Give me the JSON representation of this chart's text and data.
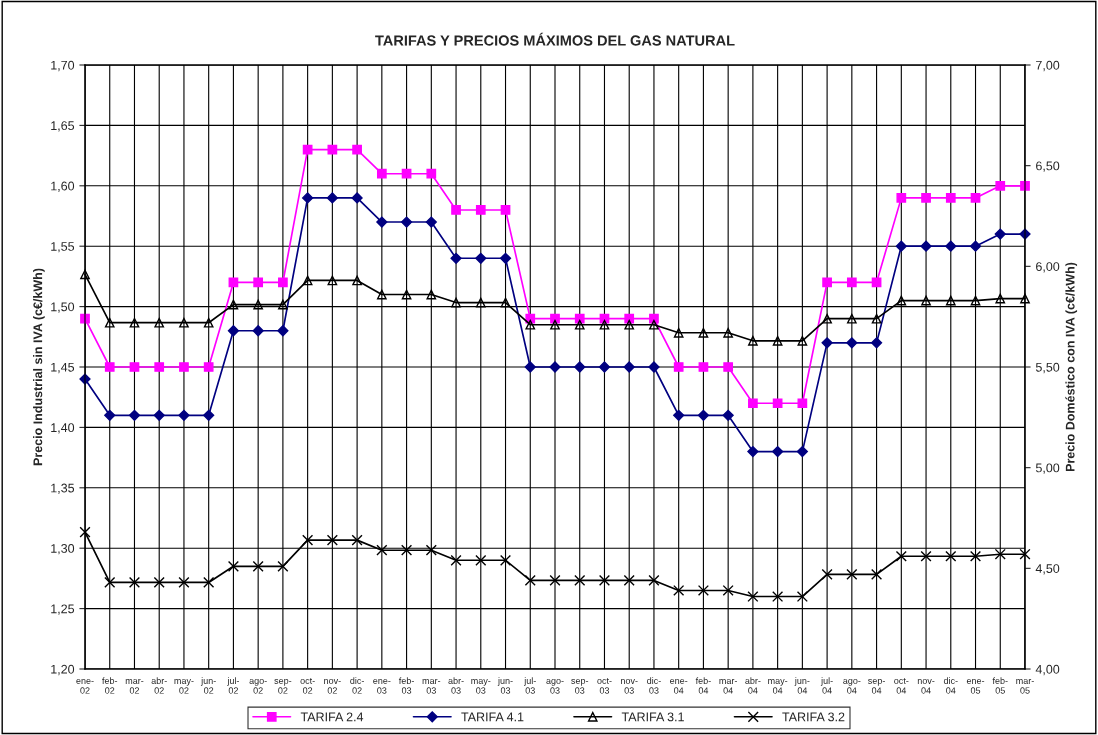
{
  "chart_data": {
    "type": "line",
    "title": "TARIFAS Y PRECIOS MÁXIMOS DEL GAS NATURAL",
    "ylabel": "Precio Industrial sin IVA (c€/kWh)",
    "y2label": "Precio Doméstico con IVA (c€/kWh)",
    "categories": [
      "ene-02",
      "feb-02",
      "mar-02",
      "abr-02",
      "may-02",
      "jun-02",
      "jul-02",
      "ago-02",
      "sep-02",
      "oct-02",
      "nov-02",
      "dic-02",
      "ene-03",
      "feb-03",
      "mar-03",
      "abr-03",
      "may-03",
      "jun-03",
      "jul-03",
      "ago-03",
      "sep-03",
      "oct-03",
      "nov-03",
      "dic-03",
      "ene-04",
      "feb-04",
      "mar-04",
      "abr-04",
      "may-04",
      "jun-04",
      "jul-04",
      "ago-04",
      "sep-04",
      "oct-04",
      "nov-04",
      "dic-04",
      "ene-05",
      "feb-05",
      "mar-05"
    ],
    "series": [
      {
        "name": "TARIFA 2.4",
        "color": "#ff00ff",
        "marker": "square",
        "values": [
          1.49,
          1.45,
          1.45,
          1.45,
          1.45,
          1.45,
          1.52,
          1.52,
          1.52,
          1.63,
          1.63,
          1.63,
          1.61,
          1.61,
          1.61,
          1.58,
          1.58,
          1.58,
          1.49,
          1.49,
          1.49,
          1.49,
          1.49,
          1.49,
          1.45,
          1.45,
          1.45,
          1.42,
          1.42,
          1.42,
          1.52,
          1.52,
          1.52,
          1.59,
          1.59,
          1.59,
          1.59,
          1.6,
          1.6
        ]
      },
      {
        "name": "TARIFA 4.1",
        "color": "#000080",
        "marker": "diamond",
        "values": [
          1.44,
          1.41,
          1.41,
          1.41,
          1.41,
          1.41,
          1.48,
          1.48,
          1.48,
          1.59,
          1.59,
          1.59,
          1.57,
          1.57,
          1.57,
          1.54,
          1.54,
          1.54,
          1.45,
          1.45,
          1.45,
          1.45,
          1.45,
          1.45,
          1.41,
          1.41,
          1.41,
          1.38,
          1.38,
          1.38,
          1.47,
          1.47,
          1.47,
          1.55,
          1.55,
          1.55,
          1.55,
          1.56,
          1.56
        ]
      },
      {
        "name": "TARIFA 3.1",
        "color": "#000000",
        "marker": "triangle",
        "axis": "y2",
        "values": [
          5.96,
          5.72,
          5.72,
          5.72,
          5.72,
          5.72,
          5.81,
          5.81,
          5.81,
          5.93,
          5.93,
          5.93,
          5.86,
          5.86,
          5.86,
          5.82,
          5.82,
          5.82,
          5.71,
          5.71,
          5.71,
          5.71,
          5.71,
          5.71,
          5.67,
          5.67,
          5.67,
          5.63,
          5.63,
          5.63,
          5.74,
          5.74,
          5.74,
          5.83,
          5.83,
          5.83,
          5.83,
          5.84,
          5.84
        ]
      },
      {
        "name": "TARIFA 3.2",
        "color": "#000000",
        "marker": "cross",
        "axis": "y2",
        "values": [
          4.68,
          4.43,
          4.43,
          4.43,
          4.43,
          4.43,
          4.51,
          4.51,
          4.51,
          4.64,
          4.64,
          4.64,
          4.59,
          4.59,
          4.59,
          4.54,
          4.54,
          4.54,
          4.44,
          4.44,
          4.44,
          4.44,
          4.44,
          4.44,
          4.39,
          4.39,
          4.39,
          4.36,
          4.36,
          4.36,
          4.47,
          4.47,
          4.47,
          4.56,
          4.56,
          4.56,
          4.56,
          4.57,
          4.57
        ]
      }
    ],
    "ylim": [
      1.2,
      1.7
    ],
    "yticks": [
      {
        "value": 1.2,
        "label": "1,20"
      },
      {
        "value": 1.25,
        "label": "1,25"
      },
      {
        "value": 1.3,
        "label": "1,30"
      },
      {
        "value": 1.35,
        "label": "1,35"
      },
      {
        "value": 1.4,
        "label": "1,40"
      },
      {
        "value": 1.45,
        "label": "1,45"
      },
      {
        "value": 1.5,
        "label": "1,50"
      },
      {
        "value": 1.55,
        "label": "1,55"
      },
      {
        "value": 1.6,
        "label": "1,60"
      },
      {
        "value": 1.65,
        "label": "1,65"
      },
      {
        "value": 1.7,
        "label": "1,70"
      }
    ],
    "y2lim": [
      4,
      7
    ],
    "y2ticks": [
      {
        "value": 4,
        "label": "4,00"
      },
      {
        "value": 4.5,
        "label": "4,50"
      },
      {
        "value": 5,
        "label": "5,00"
      },
      {
        "value": 5.5,
        "label": "5,50"
      },
      {
        "value": 6,
        "label": "6,00"
      },
      {
        "value": 6.5,
        "label": "6,50"
      },
      {
        "value": 7,
        "label": "7,00"
      }
    ],
    "grid": true,
    "legend": "bottom"
  }
}
